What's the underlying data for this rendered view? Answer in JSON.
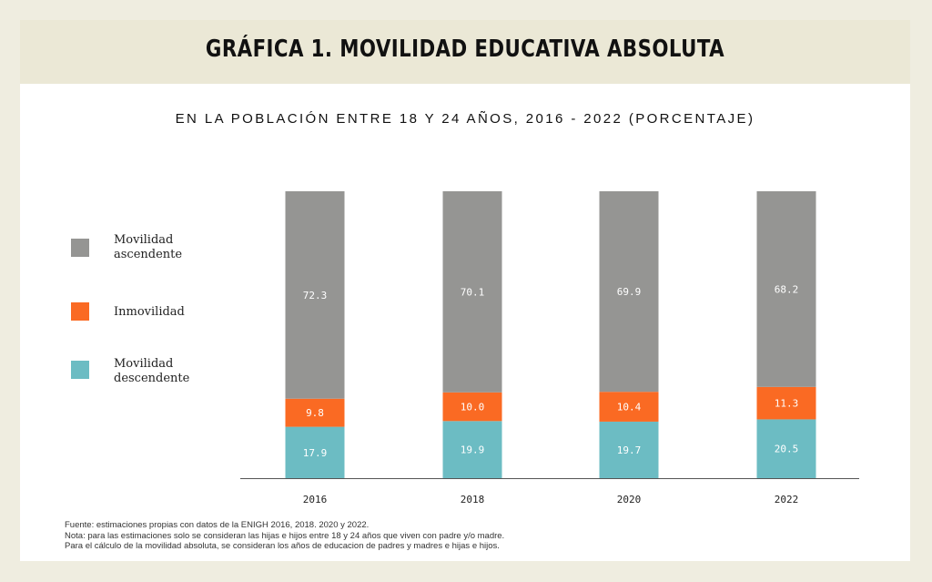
{
  "title": "GRÁFICA 1. MOVILIDAD EDUCATIVA ABSOLUTA",
  "subtitle": "EN LA POBLACIÓN ENTRE 18 Y 24 AÑOS, 2016 - 2022 (PORCENTAJE)",
  "legend": [
    {
      "label_lines": [
        "Movilidad",
        "ascendente"
      ],
      "color": "#959593"
    },
    {
      "label_lines": [
        "Inmovilidad"
      ],
      "color": "#fa6a23"
    },
    {
      "label_lines": [
        "Movilidad",
        "descendente"
      ],
      "color": "#6cbcc3"
    }
  ],
  "chart_data": {
    "type": "bar",
    "stacked": true,
    "categories": [
      "2016",
      "2018",
      "2020",
      "2022"
    ],
    "series": [
      {
        "name": "Movilidad descendente",
        "color": "#6cbcc3",
        "values": [
          17.9,
          19.9,
          19.7,
          20.5
        ]
      },
      {
        "name": "Inmovilidad",
        "color": "#fa6a23",
        "values": [
          9.8,
          10.0,
          10.4,
          11.3
        ]
      },
      {
        "name": "Movilidad ascendente",
        "color": "#959593",
        "values": [
          72.3,
          70.1,
          69.9,
          68.2
        ]
      }
    ],
    "ylim": [
      0,
      100
    ],
    "grid": false,
    "legend_position": "left"
  },
  "notes": [
    "Fuente: estimaciones propias con datos de la ENIGH 2016, 2018. 2020 y 2022.",
    "Nota: para las estimaciones solo se consideran las hijas e hijos entre 18 y 24 años que viven con padre y/o madre.",
    "Para el cálculo de la movilidad absoluta, se consideran los años de educacion de padres y madres e hijas e hijos."
  ]
}
